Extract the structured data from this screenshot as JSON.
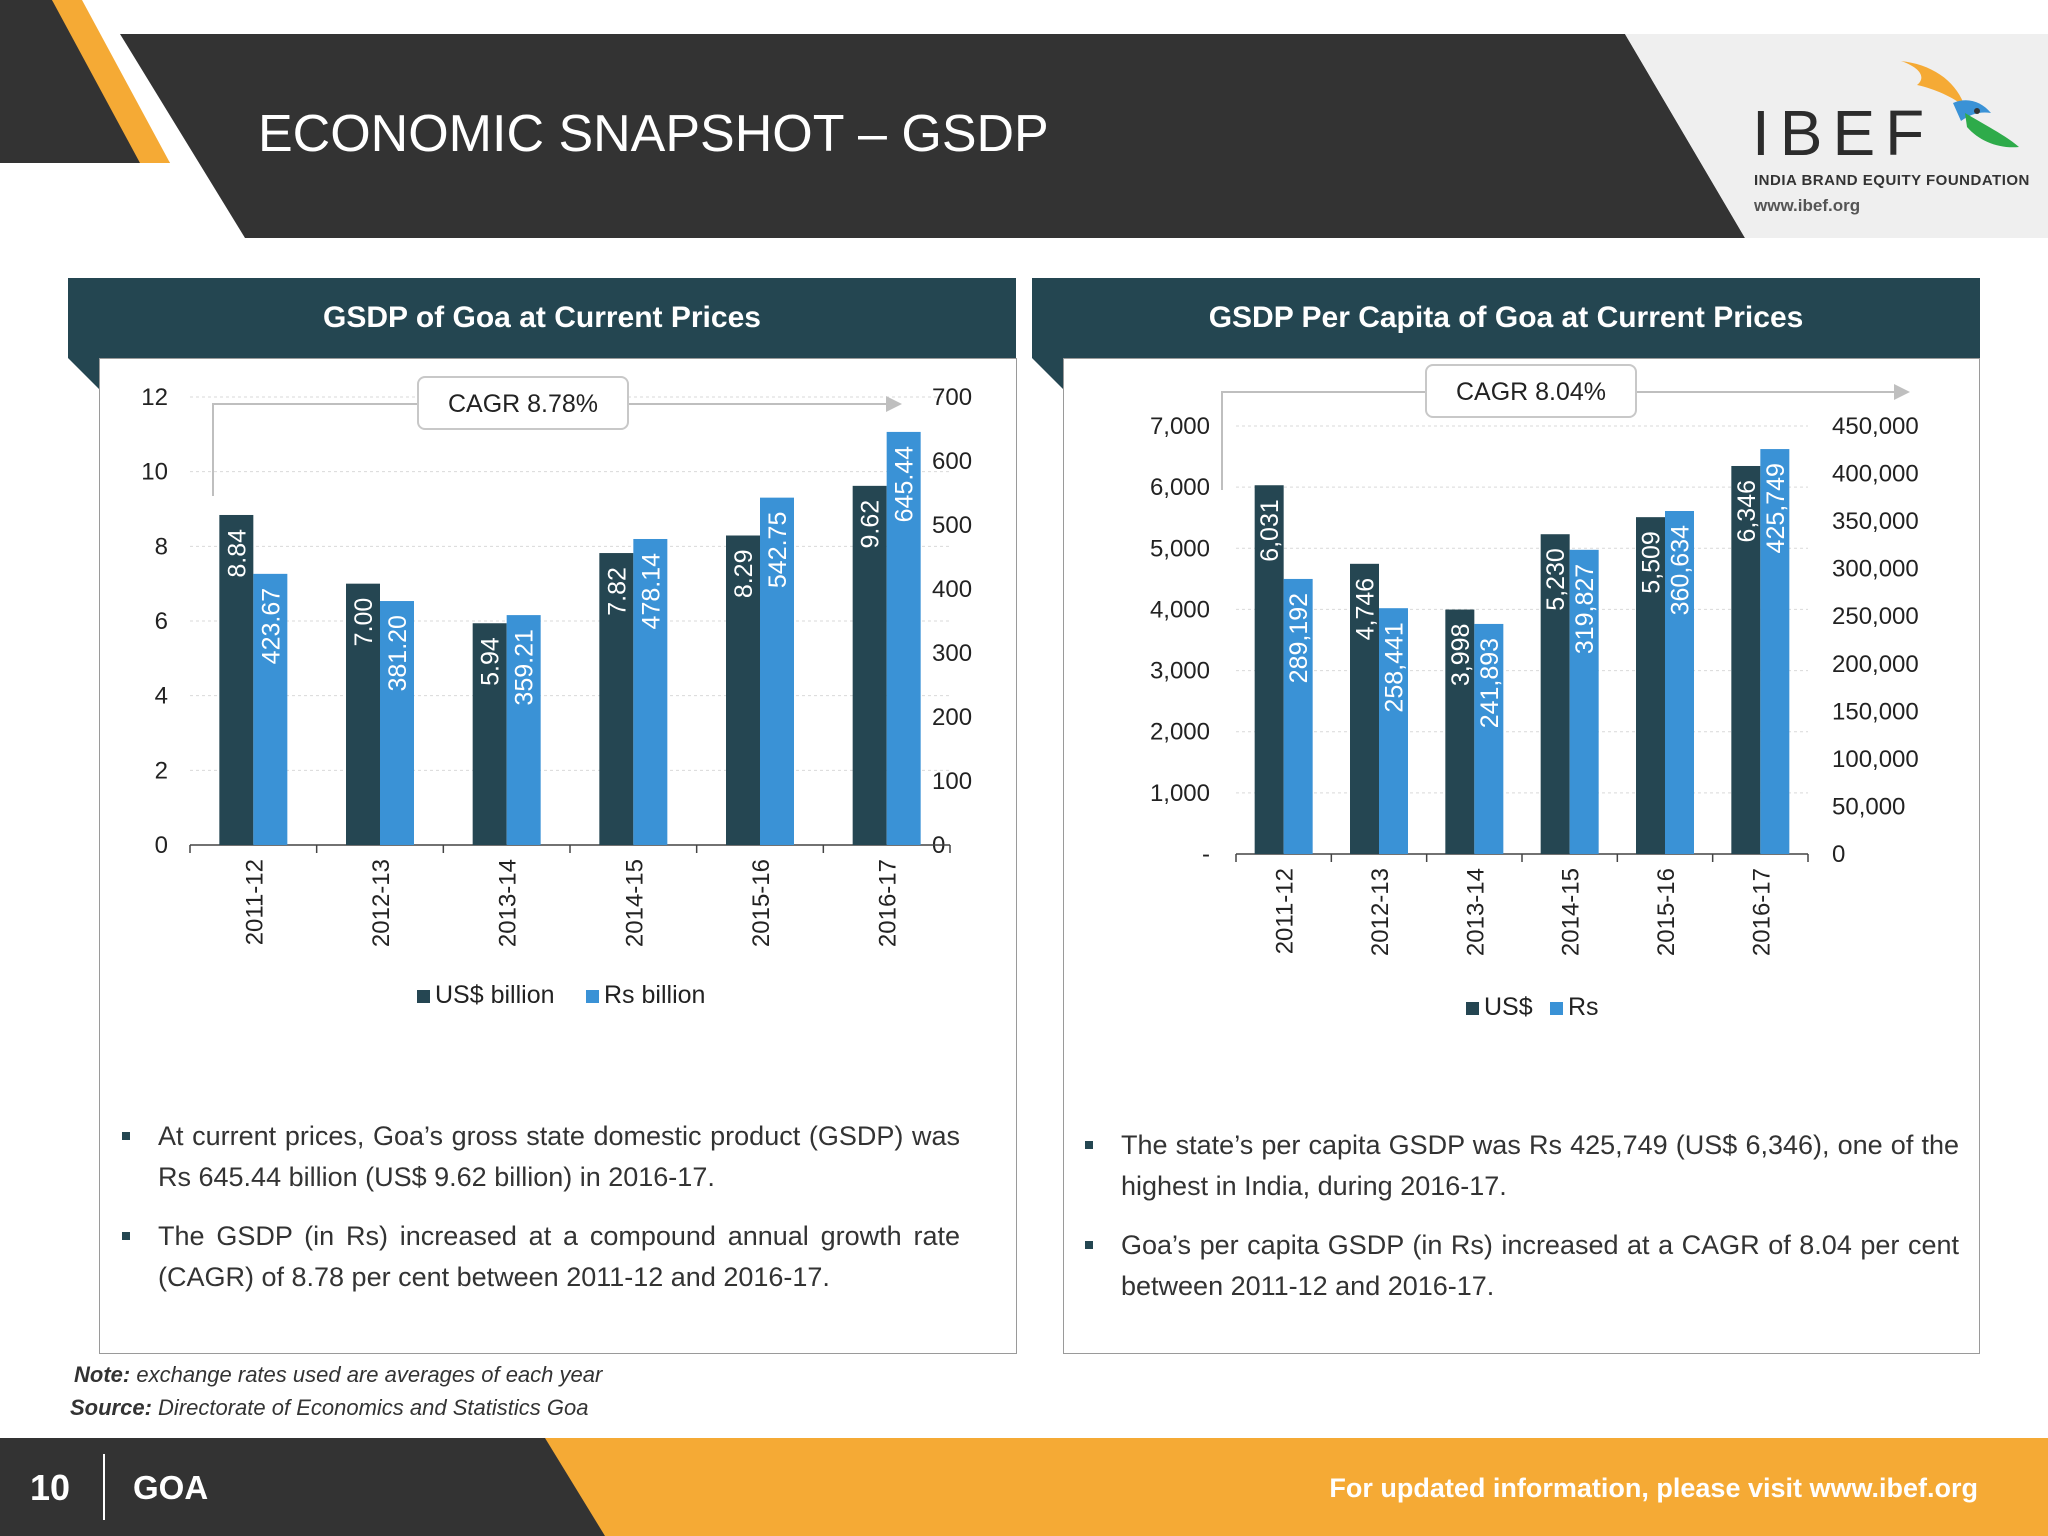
{
  "header": {
    "title": "ECONOMIC SNAPSHOT – GSDP",
    "logo_text": "IBEF",
    "logo_tagline": "INDIA BRAND EQUITY FOUNDATION",
    "logo_url": "www.ibef.org"
  },
  "colors": {
    "dark": "#244651",
    "bar_dark": "#254652",
    "bar_blue": "#3a92d6",
    "orange": "#f5aa35",
    "header_bg": "#333333"
  },
  "left_panel": {
    "title": "GSDP of Goa at Current Prices",
    "bullets": [
      "At current prices, Goa’s gross state domestic product (GSDP) was Rs 645.44 billion (US$ 9.62 billion) in 2016-17.",
      "The GSDP (in Rs) increased at a compound annual growth rate (CAGR) of 8.78 per cent between 2011-12 and 2016-17."
    ]
  },
  "right_panel": {
    "title": "GSDP Per Capita of Goa at Current Prices",
    "bullets": [
      "The state’s per capita GSDP was Rs 425,749 (US$ 6,346), one of the highest in India, during 2016-17.",
      "Goa’s per capita GSDP (in Rs) increased at a CAGR of 8.04 per cent between 2011-12 and 2016-17."
    ]
  },
  "chart_data": [
    {
      "type": "bar",
      "title": "GSDP of Goa at Current Prices",
      "categories": [
        "2011-12",
        "2012-13",
        "2013-14",
        "2014-15",
        "2015-16",
        "2016-17"
      ],
      "series": [
        {
          "name": "US$ billion",
          "axis": "left",
          "values": [
            8.84,
            7.0,
            5.94,
            7.82,
            8.29,
            9.62
          ],
          "labels": [
            "8.84",
            "7.00",
            "5.94",
            "7.82",
            "8.29",
            "9.62"
          ]
        },
        {
          "name": "Rs billion",
          "axis": "right",
          "values": [
            423.67,
            381.2,
            359.21,
            478.14,
            542.75,
            645.44
          ],
          "labels": [
            "423.67",
            "381.20",
            "359.21",
            "478.14",
            "542.75",
            "645.44"
          ]
        }
      ],
      "left_axis": {
        "ylim": [
          0,
          12
        ],
        "ticks": [
          0,
          2,
          4,
          6,
          8,
          10,
          12
        ],
        "tick_labels": [
          "0",
          "2",
          "4",
          "6",
          "8",
          "10",
          "12"
        ]
      },
      "right_axis": {
        "ylim": [
          0,
          700
        ],
        "ticks": [
          0,
          100,
          200,
          300,
          400,
          500,
          600,
          700
        ],
        "tick_labels": [
          "0",
          "100",
          "200",
          "300",
          "400",
          "500",
          "600",
          "700"
        ]
      },
      "annotation": "CAGR 8.78%",
      "legend": [
        "US$ billion",
        "Rs billion"
      ],
      "legend_position": "bottom"
    },
    {
      "type": "bar",
      "title": "GSDP Per Capita of Goa at Current Prices",
      "categories": [
        "2011-12",
        "2012-13",
        "2013-14",
        "2014-15",
        "2015-16",
        "2016-17"
      ],
      "series": [
        {
          "name": "US$",
          "axis": "left",
          "values": [
            6031,
            4746,
            3998,
            5230,
            5509,
            6346
          ],
          "labels": [
            "6,031",
            "4,746",
            "3,998",
            "5,230",
            "5,509",
            "6,346"
          ]
        },
        {
          "name": "Rs",
          "axis": "right",
          "values": [
            289192,
            258441,
            241893,
            319827,
            360634,
            425749
          ],
          "labels": [
            "289,192",
            "258,441",
            "241,893",
            "319,827",
            "360,634",
            "425,749"
          ]
        }
      ],
      "left_axis": {
        "ylim": [
          0,
          7000
        ],
        "ticks": [
          0,
          1000,
          2000,
          3000,
          4000,
          5000,
          6000,
          7000
        ],
        "tick_labels": [
          "-",
          "1,000",
          "2,000",
          "3,000",
          "4,000",
          "5,000",
          "6,000",
          "7,000"
        ]
      },
      "right_axis": {
        "ylim": [
          0,
          450000
        ],
        "ticks": [
          0,
          50000,
          100000,
          150000,
          200000,
          250000,
          300000,
          350000,
          400000,
          450000
        ],
        "tick_labels": [
          "0",
          "50,000",
          "100,000",
          "150,000",
          "200,000",
          "250,000",
          "300,000",
          "350,000",
          "400,000",
          "450,000"
        ]
      },
      "annotation": "CAGR 8.04%",
      "legend": [
        "US$",
        "Rs"
      ],
      "legend_position": "bottom"
    }
  ],
  "notes": {
    "note_label": "Note:",
    "note_text": "exchange rates used are averages of each year",
    "source_label": "Source:",
    "source_text": "Directorate of Economics and Statistics Goa"
  },
  "footer": {
    "page_number": "10",
    "state": "GOA",
    "cta": "For updated information, please visit www.ibef.org"
  }
}
